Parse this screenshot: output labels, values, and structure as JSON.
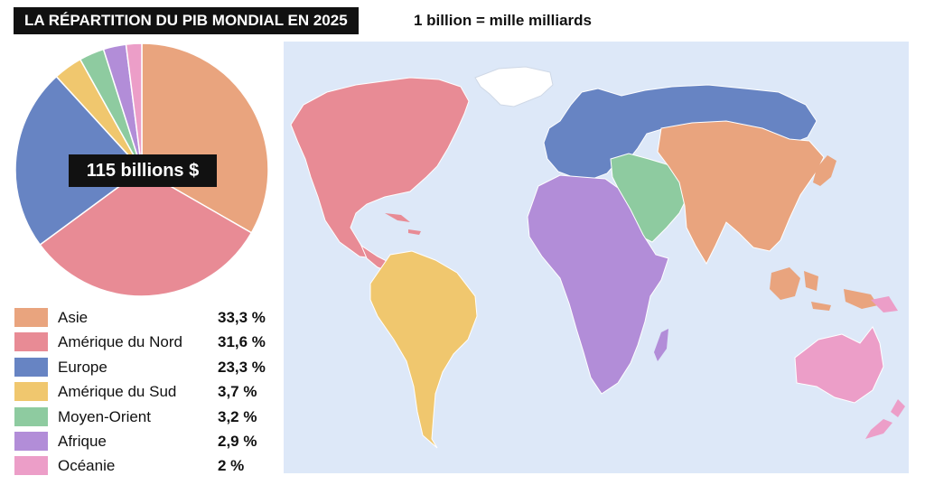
{
  "title": "LA RÉPARTITION DU PIB MONDIAL EN 2025",
  "subtitle": "1 billion = mille milliards",
  "total_label": "115 billions $",
  "colors": {
    "asie": "#E9A47E",
    "amerique_nord": "#E88B95",
    "europe": "#6784C3",
    "amerique_sud": "#F0C76E",
    "moyen_orient": "#8ECBA0",
    "afrique": "#B28DD8",
    "oceanie": "#EC9EC8",
    "ocean": "#DDE8F8"
  },
  "legend": [
    {
      "name": "Asie",
      "value_label": "33,3 %"
    },
    {
      "name": "Amérique du Nord",
      "value_label": "31,6 %"
    },
    {
      "name": "Europe",
      "value_label": "23,3 %"
    },
    {
      "name": "Amérique du Sud",
      "value_label": "3,7 %"
    },
    {
      "name": "Moyen-Orient",
      "value_label": "3,2 %"
    },
    {
      "name": "Afrique",
      "value_label": "2,9 %"
    },
    {
      "name": "Océanie",
      "value_label": "2 %"
    }
  ],
  "chart_data": {
    "type": "pie",
    "title": "LA RÉPARTITION DU PIB MONDIAL EN 2025",
    "total": "115 billions $",
    "categories": [
      "Asie",
      "Amérique du Nord",
      "Europe",
      "Amérique du Sud",
      "Moyen-Orient",
      "Afrique",
      "Océanie"
    ],
    "values": [
      33.3,
      31.6,
      23.3,
      3.7,
      3.2,
      2.9,
      2.0
    ],
    "colors": [
      "#E9A47E",
      "#E88B95",
      "#6784C3",
      "#F0C76E",
      "#8ECBA0",
      "#B28DD8",
      "#EC9EC8"
    ],
    "legend_position": "bottom-left"
  }
}
